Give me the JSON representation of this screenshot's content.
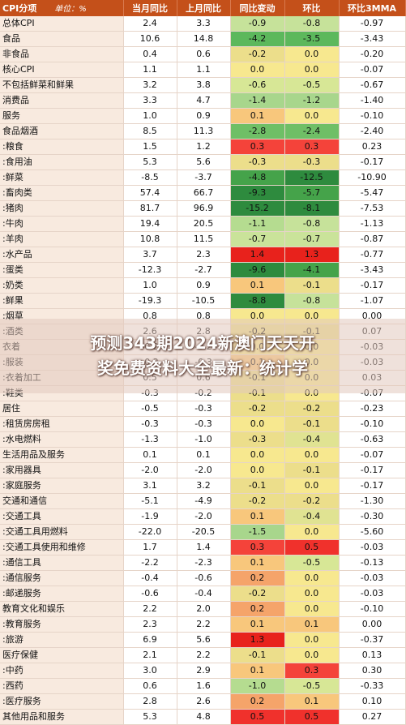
{
  "header": {
    "col0": "CPI分项",
    "unit": "单位：%",
    "cols": [
      "当月同比",
      "上月同比",
      "同比变动",
      "环比",
      "环比3MMA"
    ]
  },
  "rows": [
    {
      "name": "总体CPI",
      "v": [
        "2.4",
        "3.3",
        "-0.9",
        "-0.8",
        "-0.97"
      ],
      "c3": "#c6e29a",
      "c4": "#c6e29a",
      "grp": false
    },
    {
      "name": "食品",
      "v": [
        "10.6",
        "14.8",
        "-4.2",
        "-3.5",
        "-3.43"
      ],
      "c3": "#5cb85c",
      "c4": "#5cb85c",
      "grp": false
    },
    {
      "name": "非食品",
      "v": [
        "0.4",
        "0.6",
        "-0.2",
        "0.0",
        "-0.20"
      ],
      "c3": "#ecde8b",
      "c4": "#f7e88f",
      "grp": false
    },
    {
      "name": "核心CPI",
      "v": [
        "1.1",
        "1.1",
        "0.0",
        "0.0",
        "-0.07"
      ],
      "c3": "#f7e88f",
      "c4": "#f7e88f",
      "grp": true
    },
    {
      "name": "不包括鲜菜和鲜果",
      "v": [
        "3.2",
        "3.8",
        "-0.6",
        "-0.5",
        "-0.67"
      ],
      "c3": "#d7e796",
      "c4": "#d7e796",
      "grp": false
    },
    {
      "name": "消费品",
      "v": [
        "3.3",
        "4.7",
        "-1.4",
        "-1.2",
        "-1.40"
      ],
      "c3": "#a8d68c",
      "c4": "#a8d68c",
      "grp": false
    },
    {
      "name": "服务",
      "v": [
        "1.0",
        "0.9",
        "0.1",
        "0.0",
        "-0.10"
      ],
      "c3": "#f8c77c",
      "c4": "#f7e88f",
      "grp": false
    },
    {
      "name": "食品烟酒",
      "v": [
        "8.5",
        "11.3",
        "-2.8",
        "-2.4",
        "-2.40"
      ],
      "c3": "#6fbf66",
      "c4": "#6fbf66",
      "grp": true
    },
    {
      "name": ":粮食",
      "v": [
        "1.5",
        "1.2",
        "0.3",
        "0.3",
        "0.23"
      ],
      "c3": "#f4433a",
      "c4": "#f4433a",
      "grp": false
    },
    {
      "name": ":食用油",
      "v": [
        "5.3",
        "5.6",
        "-0.3",
        "-0.3",
        "-0.17"
      ],
      "c3": "#ecde8b",
      "c4": "#ecde8b",
      "grp": false
    },
    {
      "name": ":鲜菜",
      "v": [
        "-8.5",
        "-3.7",
        "-4.8",
        "-12.5",
        "-10.90"
      ],
      "c3": "#45a34a",
      "c4": "#2e8b3e",
      "grp": false
    },
    {
      "name": ":畜肉类",
      "v": [
        "57.4",
        "66.7",
        "-9.3",
        "-5.7",
        "-5.47"
      ],
      "c3": "#2e8b3e",
      "c4": "#45a34a",
      "grp": false
    },
    {
      "name": ":猪肉",
      "v": [
        "81.7",
        "96.9",
        "-15.2",
        "-8.1",
        "-7.53"
      ],
      "c3": "#2e8b3e",
      "c4": "#2e8b3e",
      "grp": false
    },
    {
      "name": ":牛肉",
      "v": [
        "19.4",
        "20.5",
        "-1.1",
        "-0.8",
        "-1.13"
      ],
      "c3": "#b5dc90",
      "c4": "#c6e29a",
      "grp": false
    },
    {
      "name": ":羊肉",
      "v": [
        "10.8",
        "11.5",
        "-0.7",
        "-0.7",
        "-0.87"
      ],
      "c3": "#cae39a",
      "c4": "#cae39a",
      "grp": false
    },
    {
      "name": ":水产品",
      "v": [
        "3.7",
        "2.3",
        "1.4",
        "1.3",
        "-0.77"
      ],
      "c3": "#e8221c",
      "c4": "#e8221c",
      "grp": false
    },
    {
      "name": ":蛋类",
      "v": [
        "-12.3",
        "-2.7",
        "-9.6",
        "-4.1",
        "-3.43"
      ],
      "c3": "#2e8b3e",
      "c4": "#45a34a",
      "grp": false
    },
    {
      "name": ":奶类",
      "v": [
        "1.0",
        "0.9",
        "0.1",
        "-0.1",
        "-0.17"
      ],
      "c3": "#f8c77c",
      "c4": "#ecde8b",
      "grp": false
    },
    {
      "name": ":鲜果",
      "v": [
        "-19.3",
        "-10.5",
        "-8.8",
        "-0.8",
        "-1.07"
      ],
      "c3": "#2e8b3e",
      "c4": "#c6e29a",
      "grp": false
    },
    {
      "name": ":烟草",
      "v": [
        "0.8",
        "0.8",
        "0.0",
        "0.0",
        "0.00"
      ],
      "c3": "#f7e88f",
      "c4": "#f7e88f",
      "grp": false
    },
    {
      "name": ":酒类",
      "v": [
        "2.6",
        "2.8",
        "-0.2",
        "-0.1",
        "0.07"
      ],
      "c3": "#ecde8b",
      "c4": "#ecde8b",
      "grp": false
    },
    {
      "name": "衣着",
      "v": [
        "-0.2",
        "-0.2",
        "0.0",
        "0.0",
        "-0.03"
      ],
      "c3": "#f7e88f",
      "c4": "#f7e88f",
      "grp": true
    },
    {
      "name": ":服装",
      "v": [
        "-0.2",
        "-0.3",
        "0.1",
        "0.0",
        "-0.03"
      ],
      "c3": "#f8c77c",
      "c4": "#f7e88f",
      "grp": false
    },
    {
      "name": ":衣着加工",
      "v": [
        "0.5",
        "0.6",
        "-0.1",
        "0.0",
        "0.03"
      ],
      "c3": "#ecde8b",
      "c4": "#f7e88f",
      "grp": false
    },
    {
      "name": ":鞋类",
      "v": [
        "-0.3",
        "-0.2",
        "-0.1",
        "0.0",
        "-0.07"
      ],
      "c3": "#ecde8b",
      "c4": "#f7e88f",
      "grp": false
    },
    {
      "name": "居住",
      "v": [
        "-0.5",
        "-0.3",
        "-0.2",
        "-0.2",
        "-0.23"
      ],
      "c3": "#ecde8b",
      "c4": "#ecde8b",
      "grp": true
    },
    {
      "name": ":租赁房房租",
      "v": [
        "-0.3",
        "-0.3",
        "0.0",
        "-0.1",
        "-0.10"
      ],
      "c3": "#f7e88f",
      "c4": "#ecde8b",
      "grp": false
    },
    {
      "name": ":水电燃料",
      "v": [
        "-1.3",
        "-1.0",
        "-0.3",
        "-0.4",
        "-0.63"
      ],
      "c3": "#ecde8b",
      "c4": "#e0e392",
      "grp": false
    },
    {
      "name": "生活用品及服务",
      "v": [
        "0.1",
        "0.1",
        "0.0",
        "0.0",
        "-0.07"
      ],
      "c3": "#f7e88f",
      "c4": "#f7e88f",
      "grp": true
    },
    {
      "name": ":家用器具",
      "v": [
        "-2.0",
        "-2.0",
        "0.0",
        "-0.1",
        "-0.17"
      ],
      "c3": "#f7e88f",
      "c4": "#ecde8b",
      "grp": false
    },
    {
      "name": ":家庭服务",
      "v": [
        "3.1",
        "3.2",
        "-0.1",
        "0.0",
        "-0.17"
      ],
      "c3": "#ecde8b",
      "c4": "#f7e88f",
      "grp": false
    },
    {
      "name": "交通和通信",
      "v": [
        "-5.1",
        "-4.9",
        "-0.2",
        "-0.2",
        "-1.30"
      ],
      "c3": "#ecde8b",
      "c4": "#ecde8b",
      "grp": true
    },
    {
      "name": ":交通工具",
      "v": [
        "-1.9",
        "-2.0",
        "0.1",
        "-0.4",
        "-0.30"
      ],
      "c3": "#f8c77c",
      "c4": "#e0e392",
      "grp": false
    },
    {
      "name": ":交通工具用燃料",
      "v": [
        "-22.0",
        "-20.5",
        "-1.5",
        "0.0",
        "-5.60"
      ],
      "c3": "#a8d68c",
      "c4": "#f7e88f",
      "grp": false
    },
    {
      "name": ":交通工具使用和维修",
      "v": [
        "1.7",
        "1.4",
        "0.3",
        "0.5",
        "-0.03"
      ],
      "c3": "#f4433a",
      "c4": "#f0312c",
      "grp": false
    },
    {
      "name": ":通信工具",
      "v": [
        "-2.2",
        "-2.3",
        "0.1",
        "-0.5",
        "-0.13"
      ],
      "c3": "#f8c77c",
      "c4": "#d7e796",
      "grp": false
    },
    {
      "name": ":通信服务",
      "v": [
        "-0.4",
        "-0.6",
        "0.2",
        "0.0",
        "-0.03"
      ],
      "c3": "#f5a46a",
      "c4": "#f7e88f",
      "grp": false
    },
    {
      "name": ":邮递服务",
      "v": [
        "-0.6",
        "-0.4",
        "-0.2",
        "0.0",
        "-0.03"
      ],
      "c3": "#ecde8b",
      "c4": "#f7e88f",
      "grp": false
    },
    {
      "name": "教育文化和娱乐",
      "v": [
        "2.2",
        "2.0",
        "0.2",
        "0.0",
        "-0.10"
      ],
      "c3": "#f5a46a",
      "c4": "#f7e88f",
      "grp": true
    },
    {
      "name": ":教育服务",
      "v": [
        "2.3",
        "2.2",
        "0.1",
        "0.1",
        "0.00"
      ],
      "c3": "#f8c77c",
      "c4": "#f8c77c",
      "grp": false
    },
    {
      "name": ":旅游",
      "v": [
        "6.9",
        "5.6",
        "1.3",
        "0.0",
        "-0.37"
      ],
      "c3": "#e8221c",
      "c4": "#f7e88f",
      "grp": false
    },
    {
      "name": "医疗保健",
      "v": [
        "2.1",
        "2.2",
        "-0.1",
        "0.0",
        "0.13"
      ],
      "c3": "#ecde8b",
      "c4": "#f7e88f",
      "grp": true
    },
    {
      "name": ":中药",
      "v": [
        "3.0",
        "2.9",
        "0.1",
        "0.3",
        "0.30"
      ],
      "c3": "#f8c77c",
      "c4": "#f4433a",
      "grp": false
    },
    {
      "name": ":西药",
      "v": [
        "0.6",
        "1.6",
        "-1.0",
        "-0.5",
        "-0.33"
      ],
      "c3": "#b5dc90",
      "c4": "#d7e796",
      "grp": false
    },
    {
      "name": ":医疗服务",
      "v": [
        "2.8",
        "2.6",
        "0.2",
        "0.1",
        "0.10"
      ],
      "c3": "#f5a46a",
      "c4": "#f8c77c",
      "grp": false
    },
    {
      "name": "其他用品和服务",
      "v": [
        "5.3",
        "4.8",
        "0.5",
        "0.5",
        "0.27"
      ],
      "c3": "#f0312c",
      "c4": "#f0312c",
      "grp": true
    }
  ],
  "overlay": {
    "line1": "预测343期2024新澳门天天开",
    "line2": "奖免费资料大全最新：统计学"
  }
}
